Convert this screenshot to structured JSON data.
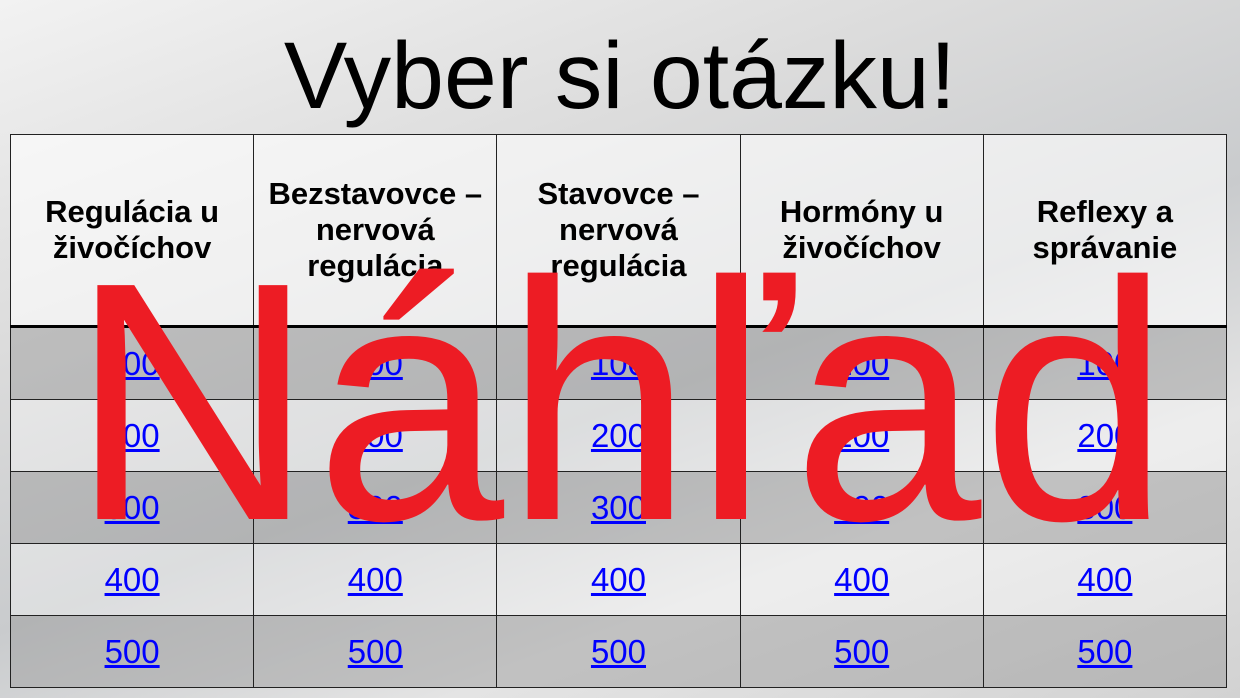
{
  "title": "Vyber si otázku!",
  "categories": [
    "Regulácia u živočíchov",
    "Bezstavovce – nervová regulácia",
    "Stavovce – nervová regulácia",
    "Hormóny u živočíchov",
    "Reflexy a správanie"
  ],
  "points": [
    "100",
    "200",
    "300",
    "400",
    "500"
  ],
  "watermark": "Náhľad",
  "colors": {
    "watermark": "#ed1c24",
    "link": "#0000ff"
  }
}
